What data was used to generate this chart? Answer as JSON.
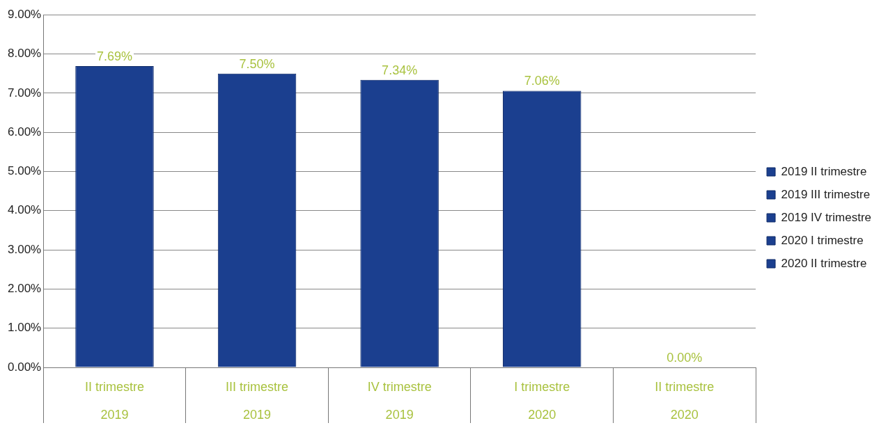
{
  "chart_data": {
    "type": "bar",
    "categories": [
      "II trimestre\n2019",
      "III trimestre\n2019",
      "IV trimestre\n2019",
      "I trimestre\n2020",
      "II trimestre\n2020"
    ],
    "series": [
      {
        "name": "2019 II trimestre",
        "color": "#1b3f8f",
        "values": [
          7.69,
          null,
          null,
          null,
          null
        ],
        "value_labels": [
          "7.69%",
          null,
          null,
          null,
          null
        ]
      },
      {
        "name": "2019 III trimestre",
        "color": "#1b3f8f",
        "values": [
          null,
          7.5,
          null,
          null,
          null
        ],
        "value_labels": [
          null,
          "7.50%",
          null,
          null,
          null
        ]
      },
      {
        "name": "2019 IV trimestre",
        "color": "#1b3f8f",
        "values": [
          null,
          null,
          7.34,
          null,
          null
        ],
        "value_labels": [
          null,
          null,
          "7.34%",
          null,
          null
        ]
      },
      {
        "name": "2020 I trimestre",
        "color": "#1b3f8f",
        "values": [
          null,
          null,
          null,
          7.06,
          null
        ],
        "value_labels": [
          null,
          null,
          null,
          "7.06%",
          null
        ]
      },
      {
        "name": "2020 II trimestre",
        "color": "#1b3f8f",
        "values": [
          null,
          null,
          null,
          null,
          0
        ],
        "value_labels": [
          null,
          null,
          null,
          null,
          "0.00%"
        ]
      }
    ],
    "ylim": [
      0,
      9
    ],
    "yticks": [
      {
        "value": 0,
        "label": "0.00%"
      },
      {
        "value": 1,
        "label": "1.00%"
      },
      {
        "value": 2,
        "label": "2.00%"
      },
      {
        "value": 3,
        "label": "3.00%"
      },
      {
        "value": 4,
        "label": "4.00%"
      },
      {
        "value": 5,
        "label": "5.00%"
      },
      {
        "value": 6,
        "label": "6.00%"
      },
      {
        "value": 7,
        "label": "7.00%"
      },
      {
        "value": 8,
        "label": "8.00%"
      },
      {
        "value": 9,
        "label": "9.00%"
      }
    ],
    "grid": "y",
    "legend": "right"
  }
}
